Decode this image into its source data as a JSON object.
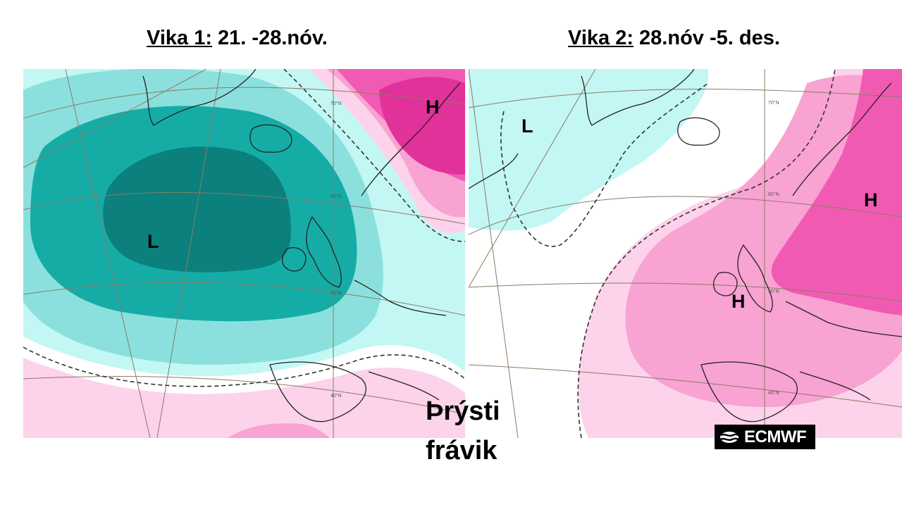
{
  "titles": {
    "left": {
      "prefix": "Vika 1:",
      "range": " 21. -28.nóv."
    },
    "right": {
      "prefix": "Vika 2:",
      "range": " 28.nóv -5. des."
    }
  },
  "maps": {
    "left": {
      "pressure_labels": [
        "H",
        "L"
      ],
      "lat_labels": [
        "70°N",
        "60°N",
        "50°N",
        "40°N"
      ]
    },
    "right": {
      "pressure_labels": [
        "L",
        "H",
        "H"
      ],
      "lat_labels": [
        "70°N",
        "60°N",
        "50°N",
        "40°N"
      ]
    }
  },
  "caption": {
    "line1": "Þrýsti",
    "line2": "frávik"
  },
  "logo": {
    "text": "ECMWF"
  },
  "colors": {
    "cyan_light": "#c3f7f4",
    "cyan_mid": "#8be0dd",
    "teal": "#16aca6",
    "teal_dark": "#0b807c",
    "pink_light": "#fcd3ea",
    "pink_mid": "#f8a3d2",
    "pink_strong": "#f15ab3",
    "magenta": "#e1319a"
  }
}
